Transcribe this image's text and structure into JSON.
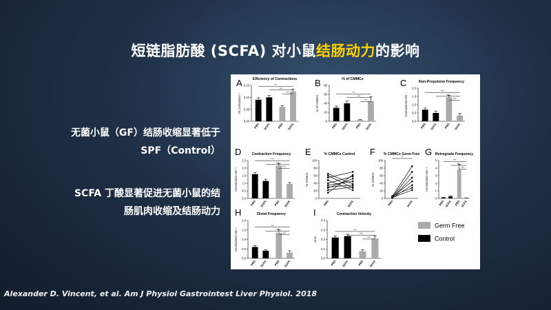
{
  "slide": {
    "title_prefix": "短链脂肪酸 (SCFA) 对小鼠",
    "title_highlight": "结肠动力",
    "title_suffix": "的影响",
    "point1_line1": "无菌小鼠（GF）结肠收缩显著低于",
    "point1_line2": "SPF（Control）",
    "point2_line1": "SCFA 丁酸显著促进无菌小鼠的结",
    "point2_line2": "肠肌肉收缩及结肠动力",
    "citation": "Alexander D. Vincent, et al. Am J Physiol Gastrointest Liver Physiol. 2018"
  },
  "colors": {
    "control": "#000000",
    "germ_free": "#aaaaaa",
    "highlight": "#ffd200"
  },
  "legend": {
    "germ_free": "Germ Free",
    "control": "Control"
  },
  "chart_data": [
    {
      "panel": "A",
      "type": "bar",
      "title": "Efficiency of Contractions",
      "ylabel": "mL contraction⁻¹",
      "ylim": [
        0,
        0.15
      ],
      "yticks": [
        "0.00",
        "0.05",
        "0.10",
        "0.15"
      ],
      "categories": [
        "PBS",
        "SCFA",
        "PBS",
        "SCFA"
      ],
      "groups": [
        "Control",
        "Control",
        "Germ Free",
        "Germ Free"
      ],
      "values": [
        0.09,
        0.1,
        0.06,
        0.125
      ],
      "errors": [
        0.008,
        0.008,
        0.005,
        0.01
      ],
      "significance": [
        "**",
        "***",
        "***"
      ]
    },
    {
      "panel": "B",
      "type": "bar",
      "title": "% of CMMCs",
      "ylabel": "% of CMMCs",
      "ylim": [
        0,
        80
      ],
      "yticks": [
        "0",
        "20",
        "40",
        "60",
        "80"
      ],
      "categories": [
        "PBS",
        "SCFA",
        "PBS",
        "SCFA"
      ],
      "groups": [
        "Control",
        "Control",
        "Germ Free",
        "Germ Free"
      ],
      "values": [
        30,
        40,
        3,
        45
      ],
      "errors": [
        4,
        5,
        1,
        10
      ],
      "significance": [
        "**",
        "***",
        "***"
      ]
    },
    {
      "panel": "C",
      "type": "bar",
      "title": "Non-Propulsive Frequency",
      "ylabel": "Contractions min⁻¹",
      "ylim": [
        0,
        2.0
      ],
      "yticks": [
        "0.0",
        "0.5",
        "1.0",
        "1.5",
        "2.0"
      ],
      "categories": [
        "PBS",
        "SCFA",
        "PBS",
        "SCFA"
      ],
      "groups": [
        "Control",
        "Control",
        "Germ Free",
        "Germ Free"
      ],
      "values": [
        0.7,
        0.5,
        1.45,
        0.35
      ],
      "errors": [
        0.1,
        0.12,
        0.12,
        0.12
      ],
      "significance": [
        "***",
        "***",
        "***"
      ]
    },
    {
      "panel": "D",
      "type": "bar",
      "title": "Contraction Frequency",
      "ylabel": "Contractions min⁻¹",
      "ylim": [
        0,
        2.5
      ],
      "yticks": [
        "0.0",
        "0.5",
        "1.0",
        "1.5",
        "2.0",
        "2.5"
      ],
      "categories": [
        "PBS",
        "SCFA",
        "PBS",
        "SCFA"
      ],
      "groups": [
        "Control",
        "Control",
        "Germ Free",
        "Germ Free"
      ],
      "values": [
        1.6,
        1.15,
        2.15,
        0.95
      ],
      "errors": [
        0.12,
        0.12,
        0.15,
        0.1
      ],
      "significance": [
        "***",
        "***",
        "***"
      ]
    },
    {
      "panel": "E",
      "type": "line",
      "title": "% CMMCs Control",
      "ylabel": "% CMMCs",
      "ylim": [
        0,
        100
      ],
      "yticks": [
        "0",
        "20",
        "40",
        "60",
        "80",
        "100"
      ],
      "categories": [
        "PBS",
        "SCFA"
      ],
      "series": [
        {
          "values": [
            65,
            38
          ]
        },
        {
          "values": [
            55,
            70
          ]
        },
        {
          "values": [
            48,
            22
          ]
        },
        {
          "values": [
            40,
            58
          ]
        },
        {
          "values": [
            35,
            45
          ]
        },
        {
          "values": [
            28,
            52
          ]
        },
        {
          "values": [
            22,
            30
          ]
        },
        {
          "values": [
            15,
            62
          ]
        },
        {
          "values": [
            60,
            28
          ]
        },
        {
          "values": [
            30,
            35
          ]
        }
      ]
    },
    {
      "panel": "F",
      "type": "line",
      "title": "% CMMCs Germ Free",
      "ylabel": "% CMMCs",
      "ylim": [
        0,
        100
      ],
      "yticks": [
        "0",
        "20",
        "40",
        "60",
        "80",
        "100"
      ],
      "categories": [
        "PBS",
        "SCFA"
      ],
      "significance": [
        "**"
      ],
      "series": [
        {
          "values": [
            5,
            85
          ]
        },
        {
          "values": [
            3,
            70
          ]
        },
        {
          "values": [
            2,
            55
          ]
        },
        {
          "values": [
            4,
            45
          ]
        },
        {
          "values": [
            1,
            35
          ]
        },
        {
          "values": [
            6,
            28
          ]
        },
        {
          "values": [
            2,
            22
          ]
        }
      ]
    },
    {
      "panel": "G",
      "type": "bar",
      "title": "Retrograde Frequency",
      "ylabel": "Contractions min⁻¹",
      "ylim": [
        0,
        5
      ],
      "yticks": [
        "0",
        "1",
        "2",
        "3",
        "4",
        "5"
      ],
      "categories": [
        "PBS",
        "SCFA",
        "PBS",
        "SCFA"
      ],
      "groups": [
        "Control",
        "Control",
        "Germ Free",
        "Germ Free"
      ],
      "values": [
        0.1,
        0.25,
        3.8,
        0.05
      ],
      "errors": [
        0.05,
        0.1,
        0.7,
        0.03
      ],
      "significance": [
        "***",
        "**",
        "***"
      ]
    },
    {
      "panel": "H",
      "type": "bar",
      "title": "Distal Frequency",
      "ylabel": "Contractions min⁻¹",
      "ylim": [
        0,
        2.0
      ],
      "yticks": [
        "0.0",
        "0.5",
        "1.0",
        "1.5",
        "2.0"
      ],
      "categories": [
        "PBS",
        "SCFA",
        "PBS",
        "SCFA"
      ],
      "groups": [
        "Control",
        "Control",
        "Germ Free",
        "Germ Free"
      ],
      "values": [
        0.6,
        0.4,
        1.35,
        0.3
      ],
      "errors": [
        0.08,
        0.06,
        0.15,
        0.1
      ],
      "significance": [
        "***",
        "***",
        "***"
      ]
    },
    {
      "panel": "I",
      "type": "bar",
      "title": "Contraction Velocity",
      "ylabel": "cm/s",
      "ylim": [
        0,
        0.4
      ],
      "yticks": [
        "0.0",
        "0.1",
        "0.2",
        "0.3",
        "0.4"
      ],
      "categories": [
        "PBS",
        "SCFA",
        "PBS",
        "SCFA"
      ],
      "groups": [
        "Control",
        "Control",
        "Germ Free",
        "Germ Free"
      ],
      "values": [
        0.22,
        0.235,
        0.075,
        0.21
      ],
      "errors": [
        0.015,
        0.02,
        0.015,
        0.025
      ],
      "significance": [
        "**",
        "***",
        "***"
      ]
    }
  ]
}
